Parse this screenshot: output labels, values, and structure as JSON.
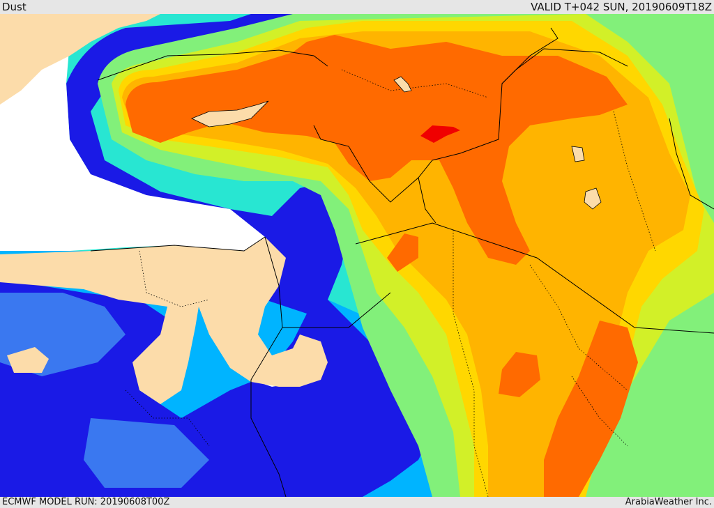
{
  "header": {
    "title": "Dust",
    "valid_time": "VALID T+042 SUN, 20190609T18Z"
  },
  "footer": {
    "model_run": "ECMWF MODEL RUN: 20190608T00Z",
    "credit": "ArabiaWeather Inc."
  },
  "colors": {
    "sea": "#ffffff",
    "land": "#fcdcaa",
    "blue": "#1a1ae6",
    "mid_blue": "#3a78f0",
    "light_blue": "#00b4ff",
    "cyan": "#28e6d2",
    "green": "#82f07a",
    "yellow_green": "#d2f028",
    "yellow": "#ffd700",
    "orange": "#ffb400",
    "dark_orange": "#ff6a00",
    "red": "#f00000",
    "borders": "#000000"
  }
}
